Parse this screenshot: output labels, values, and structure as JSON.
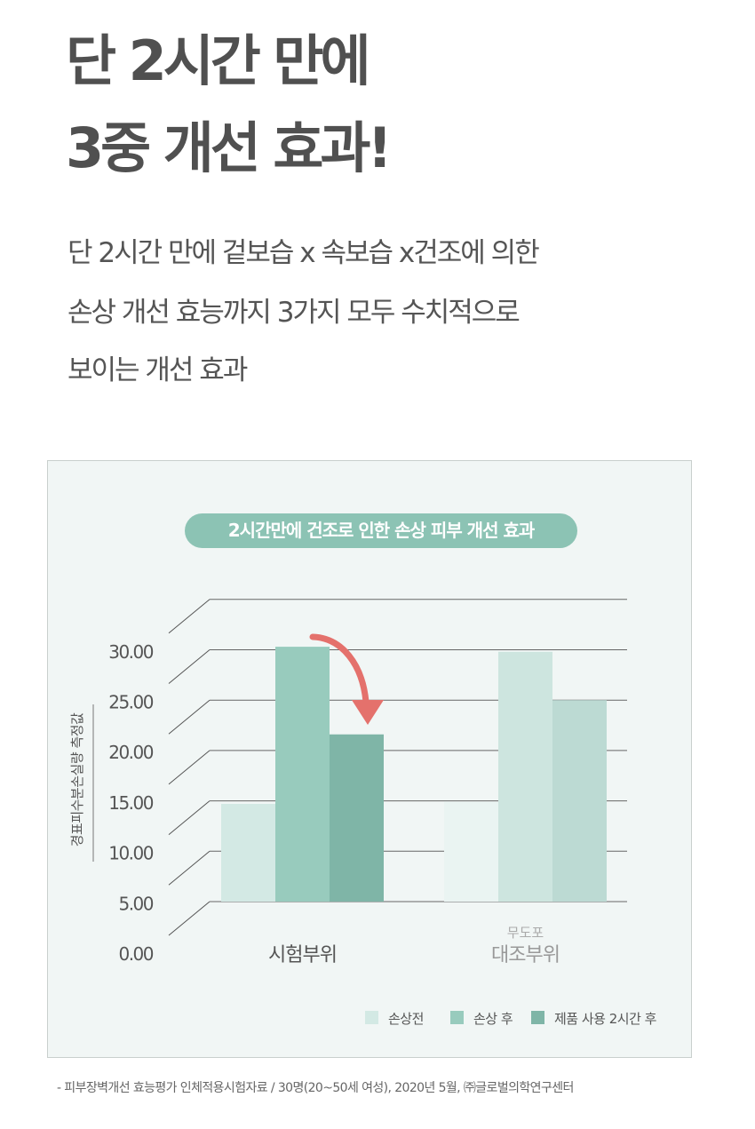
{
  "headline": {
    "line1": "단 2시간 만에",
    "line2": "3중 개선 효과!"
  },
  "description": [
    "단 2시간 만에 겉보습 x 속보습 x건조에 의한",
    "손상 개선 효능까지 3가지 모두 수치적으로",
    "보이는 개선 효과"
  ],
  "footnote": "- 피부장벽개선 효능평가 인체적용시험자료 / 30명(20~50세 여성), 2020년 5월, ㈜글로벌의학연구센터",
  "chart_data": {
    "type": "bar",
    "title": "2시간만에 건조로 인한 손상 피부 개선 효과",
    "ylabel": "경표피수분손실량 측정값",
    "ylim": [
      0,
      30
    ],
    "yticks": [
      "0.00",
      "5.00",
      "10.00",
      "15.00",
      "20.00",
      "25.00",
      "30.00"
    ],
    "categories": [
      "시험부위",
      "대조부위"
    ],
    "category_sublabels": [
      "",
      "무도포"
    ],
    "series": [
      {
        "name": "손상전",
        "values": [
          9.7,
          9.9
        ]
      },
      {
        "name": "손상 후",
        "values": [
          25.3,
          24.8
        ]
      },
      {
        "name": "제품 사용 2시간 후",
        "values": [
          16.6,
          20.0
        ]
      }
    ],
    "colors": {
      "test": [
        "#d3e9e4",
        "#98cbbd",
        "#7fb5a7"
      ],
      "control": [
        "#eaf4f2",
        "#cde5df",
        "#bcdad3"
      ],
      "arrow": "#e4716c",
      "pill": "#8cc3b4"
    },
    "legend_position": "bottom-right",
    "grid": true
  }
}
